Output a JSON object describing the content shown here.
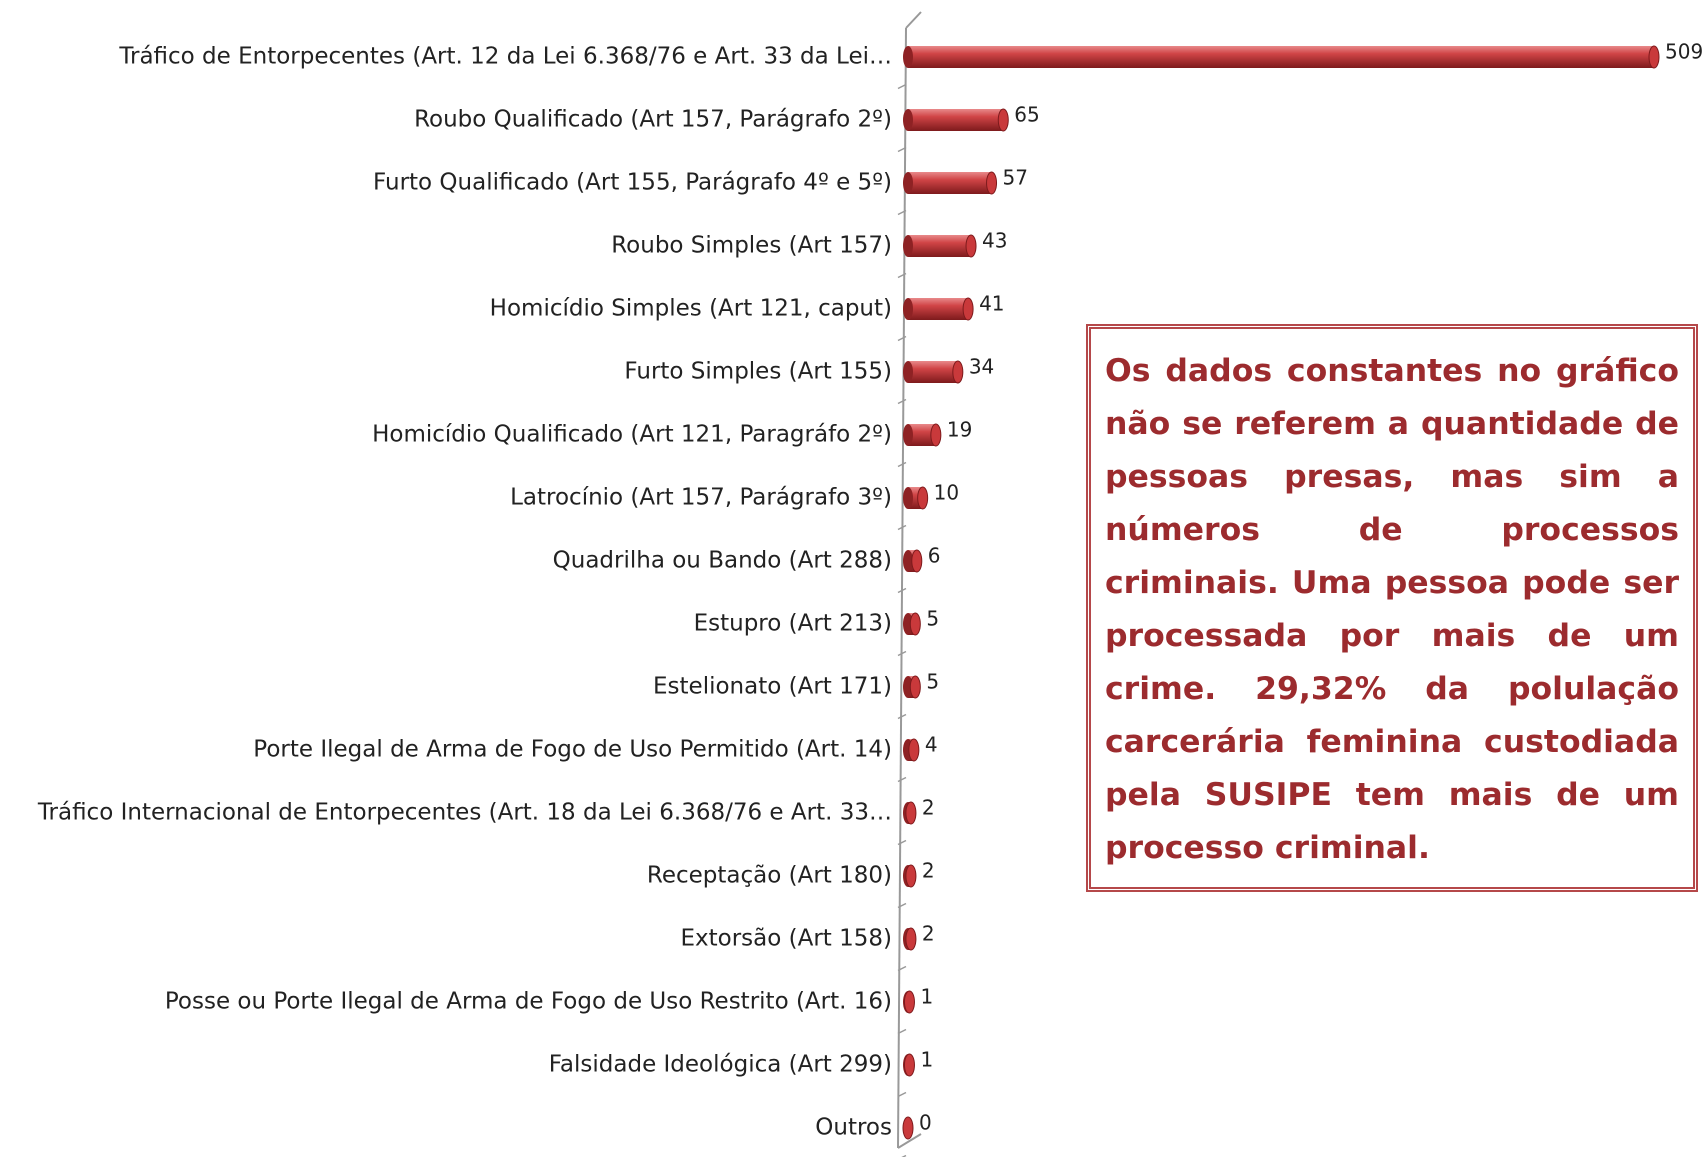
{
  "chart_data": {
    "type": "bar",
    "orientation": "horizontal",
    "categories": [
      "Tráfico de Entorpecentes (Art. 12 da Lei 6.368/76 e Art. 33 da Lei…",
      "Roubo Qualificado (Art 157, Parágrafo 2º)",
      "Furto Qualificado (Art 155, Parágrafo 4º e 5º)",
      "Roubo Simples (Art 157)",
      "Homicídio Simples (Art 121, caput)",
      "Furto Simples (Art 155)",
      "Homicídio Qualificado (Art 121, Paragráfo 2º)",
      "Latrocínio (Art 157, Parágrafo 3º)",
      "Quadrilha ou Bando (Art 288)",
      "Estupro (Art 213)",
      "Estelionato (Art 171)",
      "Porte Ilegal de Arma de Fogo de Uso Permitido (Art. 14)",
      "Tráfico Internacional de Entorpecentes (Art. 18 da Lei 6.368/76 e Art. 33…",
      "Receptação (Art 180)",
      "Extorsão (Art 158)",
      "Posse ou Porte Ilegal de Arma de Fogo de Uso Restrito (Art. 16)",
      "Falsidade Ideológica (Art 299)",
      "Outros"
    ],
    "values": [
      509,
      65,
      57,
      43,
      41,
      34,
      19,
      10,
      6,
      5,
      5,
      4,
      2,
      2,
      2,
      1,
      1,
      0
    ],
    "color": "#c0393b",
    "annotation": "Os dados constantes no gráfico não se referem a quantidade de pessoas presas, mas sim a números de processos criminais. Uma pessoa pode ser processada por mais de um crime. 29,32% da polulação carcerária feminina custodiada pela SUSIPE tem mais de um processo criminal."
  }
}
